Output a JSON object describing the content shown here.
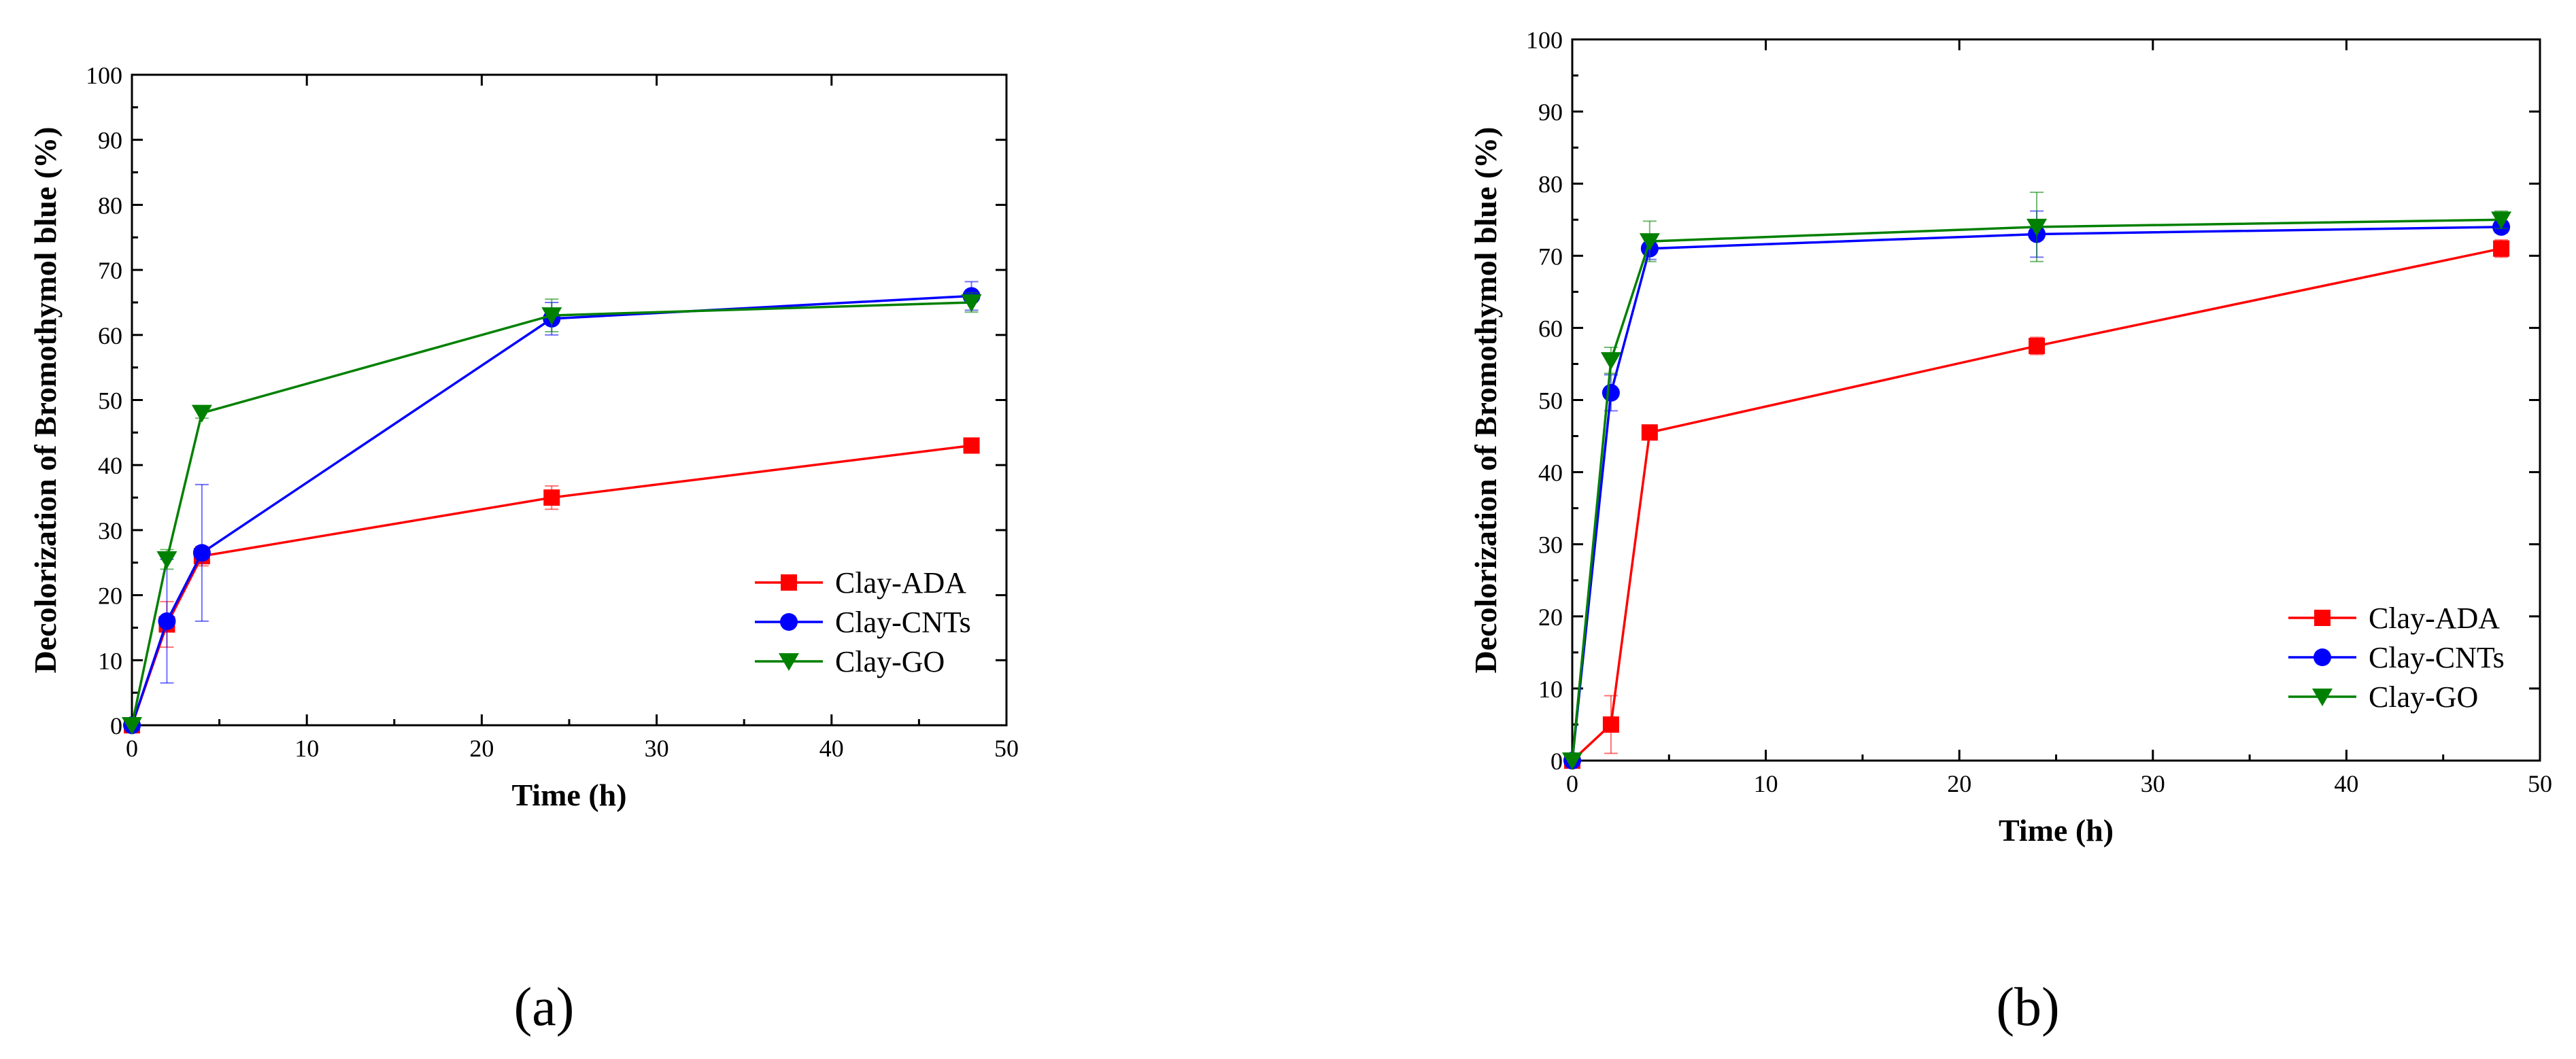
{
  "chart_data": [
    {
      "type": "line",
      "panel": "a",
      "panel_label": "(a)",
      "xlabel": "Time (h)",
      "ylabel": "Decolorization of Bromothymol blue (%)",
      "xlim": [
        0,
        50
      ],
      "ylim": [
        0,
        100
      ],
      "xticks": [
        0,
        10,
        20,
        30,
        40,
        50
      ],
      "yticks": [
        0,
        10,
        20,
        30,
        40,
        50,
        60,
        70,
        80,
        90,
        100
      ],
      "legend_position": "bottom-right",
      "series": [
        {
          "name": "Clay-ADA",
          "color": "#ff0000",
          "marker": "square",
          "x": [
            0,
            2,
            4,
            24,
            48
          ],
          "y": [
            0,
            15.5,
            26,
            35,
            43
          ],
          "err": [
            0,
            3.5,
            1.5,
            1.8,
            0.8
          ]
        },
        {
          "name": "Clay-CNTs",
          "color": "#0000ff",
          "marker": "circle",
          "x": [
            0,
            2,
            4,
            24,
            48
          ],
          "y": [
            0,
            16,
            26.5,
            62.5,
            66
          ],
          "err": [
            0,
            9.5,
            10.5,
            2.5,
            2.2
          ]
        },
        {
          "name": "Clay-GO",
          "color": "#008000",
          "marker": "triangle-down",
          "x": [
            0,
            2,
            4,
            24,
            48
          ],
          "y": [
            0,
            25.5,
            48,
            63,
            65
          ],
          "err": [
            0,
            1.5,
            0.8,
            2.5,
            1.5
          ]
        }
      ]
    },
    {
      "type": "line",
      "panel": "b",
      "panel_label": "(b)",
      "xlabel": "Time (h)",
      "ylabel": "Decolorization of Bromothymol blue (%)",
      "xlim": [
        0,
        50
      ],
      "ylim": [
        0,
        100
      ],
      "xticks": [
        0,
        10,
        20,
        30,
        40,
        50
      ],
      "yticks": [
        0,
        10,
        20,
        30,
        40,
        50,
        60,
        70,
        80,
        90,
        100
      ],
      "legend_position": "bottom-right",
      "series": [
        {
          "name": "Clay-ADA",
          "color": "#ff0000",
          "marker": "square",
          "x": [
            0,
            2,
            4,
            24,
            48
          ],
          "y": [
            0,
            5,
            45.5,
            57.5,
            71
          ],
          "err": [
            0,
            4,
            0.6,
            1.2,
            1.2
          ]
        },
        {
          "name": "Clay-CNTs",
          "color": "#0000ff",
          "marker": "circle",
          "x": [
            0,
            2,
            4,
            24,
            48
          ],
          "y": [
            0,
            51,
            71,
            73,
            74
          ],
          "err": [
            0,
            2.5,
            1.5,
            3.2,
            0.8
          ]
        },
        {
          "name": "Clay-GO",
          "color": "#008000",
          "marker": "triangle-down",
          "x": [
            0,
            2,
            4,
            24,
            48
          ],
          "y": [
            0,
            55.5,
            72,
            74,
            75
          ],
          "err": [
            0,
            1.8,
            2.8,
            4.8,
            1.2
          ]
        }
      ]
    }
  ]
}
